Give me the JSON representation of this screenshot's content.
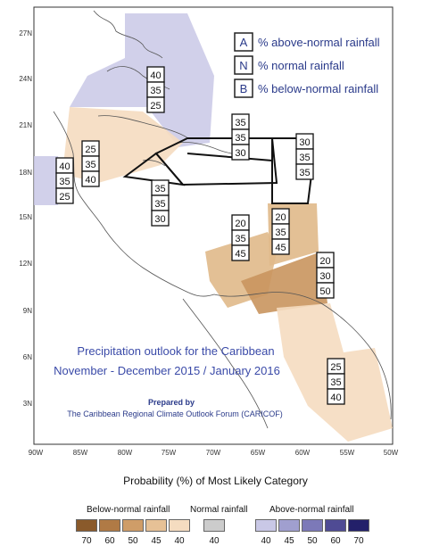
{
  "map": {
    "lat_labels": [
      "27N",
      "24N",
      "21N",
      "18N",
      "15N",
      "12N",
      "9N",
      "6N",
      "3N"
    ],
    "lon_labels": [
      "90W",
      "85W",
      "80W",
      "75W",
      "70W",
      "65W",
      "60W",
      "55W",
      "50W"
    ],
    "key": [
      {
        "letter": "A",
        "text": "% above-normal rainfall"
      },
      {
        "letter": "N",
        "text": "% normal rainfall"
      },
      {
        "letter": "B",
        "text": "% below-normal rainfall"
      }
    ],
    "title_line1": "Precipitation outlook for the Caribbean",
    "title_line2": "November - December 2015 / January 2016",
    "prepared_by": "Prepared by",
    "forum": "The Caribbean Regional Climate Outlook Forum (CARICOF)",
    "zones": [
      {
        "id": "bahamas",
        "values": [
          "40",
          "35",
          "25"
        ],
        "color": "#c9c8e6"
      },
      {
        "id": "turks",
        "values": [
          "35",
          "35",
          "30"
        ],
        "color": "none"
      },
      {
        "id": "leewards",
        "values": [
          "30",
          "35",
          "35"
        ],
        "color": "none"
      },
      {
        "id": "belize",
        "values": [
          "40",
          "35",
          "25"
        ],
        "color": "#c9c8e6"
      },
      {
        "id": "cayman",
        "values": [
          "25",
          "35",
          "40"
        ],
        "color": "#f5dcc0"
      },
      {
        "id": "jamaica",
        "values": [
          "35",
          "35",
          "30"
        ],
        "color": "none"
      },
      {
        "id": "abc",
        "values": [
          "20",
          "35",
          "45"
        ],
        "color": "#e0b98a"
      },
      {
        "id": "windwards",
        "values": [
          "20",
          "35",
          "45"
        ],
        "color": "#e0b98a"
      },
      {
        "id": "trinidad",
        "values": [
          "20",
          "30",
          "50"
        ],
        "color": "#c9955e"
      },
      {
        "id": "guianas",
        "values": [
          "25",
          "35",
          "40"
        ],
        "color": "#f5dcc0"
      }
    ]
  },
  "legend": {
    "title": "Probability (%) of Most Likely Category",
    "below": {
      "title": "Below-normal rainfall",
      "values": [
        "70",
        "60",
        "50",
        "45",
        "40"
      ],
      "colors": [
        "#8a5a2b",
        "#b07a45",
        "#cf9d68",
        "#e6c196",
        "#f5dcc0"
      ]
    },
    "normal": {
      "title": "Normal rainfall",
      "values": [
        "40"
      ],
      "colors": [
        "#cccccc"
      ]
    },
    "above": {
      "title": "Above-normal rainfall",
      "values": [
        "40",
        "45",
        "50",
        "60",
        "70"
      ],
      "colors": [
        "#c9c8e6",
        "#a09fcf",
        "#7c79b8",
        "#4f4b94",
        "#23206a"
      ]
    }
  }
}
